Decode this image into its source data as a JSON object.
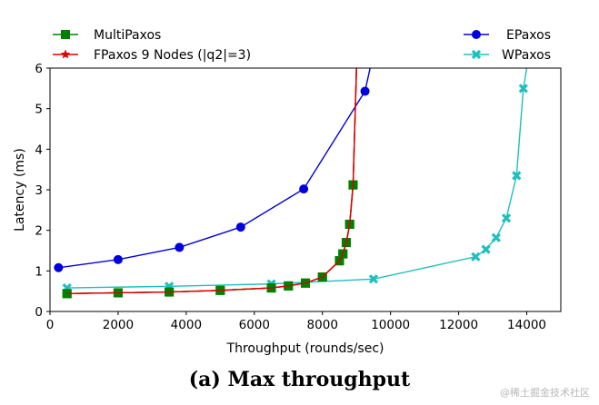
{
  "chart_data": {
    "type": "line",
    "title": "",
    "xlabel": "Throughput (rounds/sec)",
    "ylabel": "Latency (ms)",
    "xlim": [
      0,
      15000
    ],
    "ylim": [
      0,
      6
    ],
    "xticks": [
      0,
      2000,
      4000,
      6000,
      8000,
      10000,
      12000,
      14000
    ],
    "yticks": [
      0,
      1,
      2,
      3,
      4,
      5,
      6
    ],
    "grid": false,
    "legend_placement": "top, above plot",
    "series": [
      {
        "name": "MultiPaxos",
        "color": "#008000",
        "marker": "square",
        "x": [
          500,
          2000,
          3500,
          5000,
          6500,
          7000,
          7500,
          8000,
          8500,
          8600,
          8700,
          8800,
          8900,
          9000
        ],
        "y": [
          0.44,
          0.46,
          0.48,
          0.52,
          0.58,
          0.63,
          0.7,
          0.85,
          1.25,
          1.42,
          1.7,
          2.15,
          3.12,
          6.0
        ]
      },
      {
        "name": "FPaxos 9 Nodes (|q2|=3)",
        "color": "#dd0000",
        "marker": "star",
        "x": [
          500,
          2000,
          3500,
          5000,
          6500,
          7000,
          7500,
          8000,
          8500,
          8600,
          8700,
          8800,
          8900,
          9000
        ],
        "y": [
          0.44,
          0.46,
          0.48,
          0.52,
          0.58,
          0.63,
          0.7,
          0.85,
          1.25,
          1.42,
          1.7,
          2.15,
          3.12,
          6.0
        ]
      },
      {
        "name": "EPaxos",
        "color": "#0000dd",
        "marker": "circle",
        "x": [
          250,
          2000,
          3800,
          5600,
          7450,
          9250,
          9400
        ],
        "y": [
          1.08,
          1.28,
          1.58,
          2.08,
          3.02,
          5.43,
          6.0
        ]
      },
      {
        "name": "WPaxos",
        "color": "#1fbfbf",
        "marker": "x-filled",
        "x": [
          500,
          3500,
          6500,
          9500,
          12500,
          12800,
          13100,
          13400,
          13700,
          13900,
          14000
        ],
        "y": [
          0.58,
          0.62,
          0.68,
          0.8,
          1.35,
          1.53,
          1.82,
          2.3,
          3.35,
          5.5,
          6.0
        ]
      }
    ],
    "legend": {
      "left": [
        "MultiPaxos",
        "FPaxos 9 Nodes (|q2|=3)"
      ],
      "right": [
        "EPaxos",
        "WPaxos"
      ]
    }
  },
  "caption": "(a) Max throughput",
  "watermark": "@稀土掘金技术社区"
}
